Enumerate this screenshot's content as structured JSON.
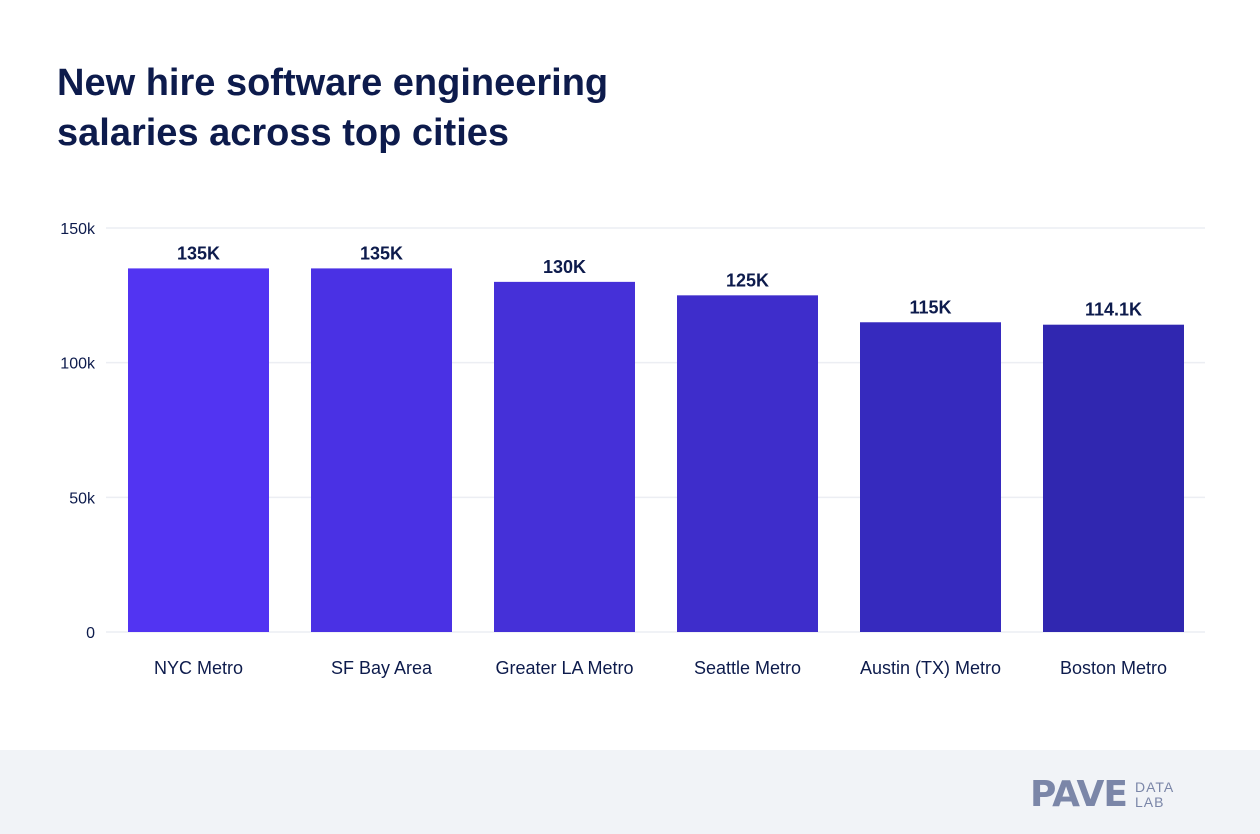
{
  "chart_data": {
    "type": "bar",
    "title": "New hire software engineering salaries across top cities",
    "categories": [
      "NYC Metro",
      "SF Bay Area",
      "Greater LA Metro",
      "Seattle Metro",
      "Austin (TX) Metro",
      "Boston Metro"
    ],
    "values": [
      135,
      135,
      130,
      125,
      115,
      114.1
    ],
    "data_labels": [
      "135K",
      "135K",
      "130K",
      "125K",
      "115K",
      "114.1K"
    ],
    "unit": "thousands USD",
    "ylim": [
      0,
      150
    ],
    "yticks": [
      0,
      50,
      100,
      150
    ],
    "ytick_labels": [
      "0",
      "50k",
      "100k",
      "150k"
    ],
    "grid": true,
    "legend": "none",
    "bar_colors": [
      "#5234f2",
      "#4a31e4",
      "#4530d8",
      "#3e2dcb",
      "#362abe",
      "#3027b0"
    ],
    "text_color": "#0d1b4c"
  },
  "footer": {
    "logo_main": "PAVE",
    "logo_sub_1": "DATA",
    "logo_sub_2": "LAB"
  }
}
